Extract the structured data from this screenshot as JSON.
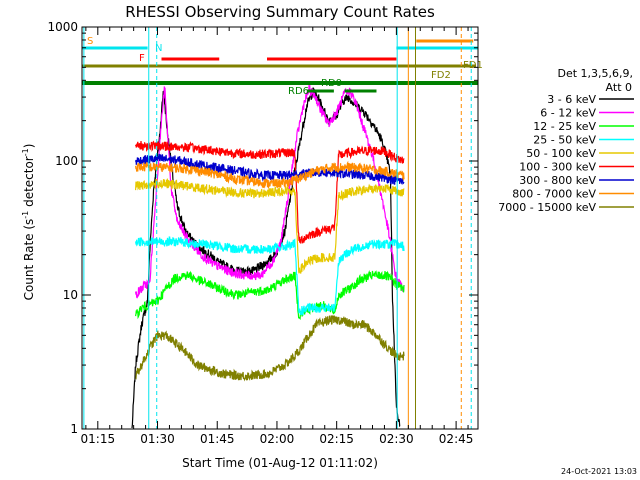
{
  "chart_data": {
    "type": "line",
    "title": "RHESSI Observing Summary Count Rates",
    "xlabel": "Start Time (01-Aug-12 01:11:02)",
    "ylabel": "Count Rate (s⁻¹ detector⁻¹)",
    "ylabel_base": "Count Rate (s",
    "ylabel_sup1": "-1",
    "ylabel_mid": " detector",
    "ylabel_sup2": "-1",
    "ylabel_end": ")",
    "yscale": "log",
    "ylim": [
      1,
      1000
    ],
    "xlim_minutes": [
      71.03,
      170.5
    ],
    "x_ticks": [
      {
        "m": 75,
        "label": "01:15"
      },
      {
        "m": 90,
        "label": "01:30"
      },
      {
        "m": 105,
        "label": "01:45"
      },
      {
        "m": 120,
        "label": "02:00"
      },
      {
        "m": 135,
        "label": "02:15"
      },
      {
        "m": 150,
        "label": "02:30"
      },
      {
        "m": 165,
        "label": "02:45"
      }
    ],
    "y_ticks": [
      {
        "v": 1,
        "label": "1"
      },
      {
        "v": 10,
        "label": "10"
      },
      {
        "v": 100,
        "label": "100"
      },
      {
        "v": 1000,
        "label": "1000"
      }
    ],
    "legend_header": [
      "Det 1,3,5,6,9,",
      "Att 0"
    ],
    "timestamp": "24-Oct-2021 13:03",
    "flags": [
      {
        "label": "S",
        "color": "#ff8c00"
      },
      {
        "label": "N",
        "color": "#00e5ee"
      },
      {
        "label": "F",
        "color": "#ff0000"
      },
      {
        "label": "RD0",
        "color": "#008000"
      },
      {
        "label": "RD6",
        "color": "#008000"
      },
      {
        "label": "FD2",
        "color": "#808000"
      },
      {
        "label": "FD1",
        "color": "#808000"
      }
    ],
    "series": [
      {
        "name": "3 - 6 keV",
        "color": "#000000",
        "points": [
          [
            83.6,
            1.0
          ],
          [
            84.5,
            3
          ],
          [
            86,
            6
          ],
          [
            87.5,
            9
          ],
          [
            88,
            20
          ],
          [
            89,
            60
          ],
          [
            90.5,
            150
          ],
          [
            91.5,
            350
          ],
          [
            92.2,
            200
          ],
          [
            93.5,
            90
          ],
          [
            95,
            45
          ],
          [
            97,
            30
          ],
          [
            99,
            25
          ],
          [
            101,
            22
          ],
          [
            103,
            20
          ],
          [
            106,
            17
          ],
          [
            110,
            15
          ],
          [
            114,
            15
          ],
          [
            118,
            18
          ],
          [
            120,
            21
          ],
          [
            122,
            30
          ],
          [
            124,
            70
          ],
          [
            126,
            150
          ],
          [
            127.5,
            260
          ],
          [
            129,
            330
          ],
          [
            130.5,
            290
          ],
          [
            132,
            230
          ],
          [
            133,
            200
          ],
          [
            135,
            220
          ],
          [
            136.5,
            280
          ],
          [
            138,
            300
          ],
          [
            140,
            260
          ],
          [
            142,
            230
          ],
          [
            144,
            190
          ],
          [
            146,
            150
          ],
          [
            147.5,
            110
          ],
          [
            148.5,
            80
          ],
          [
            149,
            10
          ],
          [
            150,
            1.5
          ],
          [
            151,
            1.0
          ]
        ]
      },
      {
        "name": "6 - 12 keV",
        "color": "#ff00ff",
        "points": [
          [
            84.5,
            10
          ],
          [
            87,
            12
          ],
          [
            88,
            12
          ],
          [
            89.5,
            50
          ],
          [
            91,
            200
          ],
          [
            91.8,
            360
          ],
          [
            92.3,
            200
          ],
          [
            93.5,
            60
          ],
          [
            95,
            35
          ],
          [
            98,
            25
          ],
          [
            101,
            20
          ],
          [
            104,
            17
          ],
          [
            108,
            15
          ],
          [
            112,
            14
          ],
          [
            116,
            14
          ],
          [
            119,
            18
          ],
          [
            121,
            25
          ],
          [
            123,
            60
          ],
          [
            125,
            150
          ],
          [
            126.5,
            250
          ],
          [
            128,
            340
          ],
          [
            129.5,
            310
          ],
          [
            131,
            240
          ],
          [
            133,
            190
          ],
          [
            135,
            230
          ],
          [
            137,
            320
          ],
          [
            138.5,
            330
          ],
          [
            140,
            260
          ],
          [
            142,
            170
          ],
          [
            144,
            110
          ],
          [
            146,
            60
          ],
          [
            148,
            30
          ],
          [
            150,
            13
          ],
          [
            152,
            11
          ]
        ]
      },
      {
        "name": "12 - 25 keV",
        "color": "#00ff00",
        "points": [
          [
            84.5,
            7
          ],
          [
            86,
            8
          ],
          [
            88,
            8.5
          ],
          [
            90,
            9
          ],
          [
            92,
            11
          ],
          [
            94,
            13
          ],
          [
            96,
            14
          ],
          [
            98,
            14
          ],
          [
            100,
            13
          ],
          [
            103,
            12
          ],
          [
            106,
            11
          ],
          [
            110,
            10
          ],
          [
            114,
            10.5
          ],
          [
            118,
            11
          ],
          [
            122,
            13
          ],
          [
            124.5,
            14
          ],
          [
            125.5,
            7
          ],
          [
            127,
            7.5
          ],
          [
            129,
            8
          ],
          [
            131,
            8.5
          ],
          [
            133,
            8
          ],
          [
            134.5,
            7.5
          ],
          [
            135.5,
            10
          ],
          [
            138,
            11
          ],
          [
            141,
            13
          ],
          [
            144,
            14
          ],
          [
            147,
            14
          ],
          [
            149,
            13
          ],
          [
            150,
            12
          ],
          [
            152,
            11
          ]
        ]
      },
      {
        "name": "25 - 50 keV",
        "color": "#00ffff",
        "points": [
          [
            84.5,
            25
          ],
          [
            87,
            25
          ],
          [
            90,
            25
          ],
          [
            93,
            25
          ],
          [
            96,
            25
          ],
          [
            99,
            24
          ],
          [
            102,
            24
          ],
          [
            106,
            23
          ],
          [
            110,
            22
          ],
          [
            114,
            22
          ],
          [
            118,
            22
          ],
          [
            122,
            23
          ],
          [
            124.5,
            24
          ],
          [
            125.5,
            7.5
          ],
          [
            128,
            8
          ],
          [
            131,
            8
          ],
          [
            134.5,
            8
          ],
          [
            135.5,
            18
          ],
          [
            138,
            21
          ],
          [
            141,
            23
          ],
          [
            144,
            24
          ],
          [
            147,
            24
          ],
          [
            150,
            24
          ],
          [
            152,
            23
          ]
        ]
      },
      {
        "name": "50 - 100 keV",
        "color": "#e6c800",
        "points": [
          [
            84.5,
            65
          ],
          [
            87,
            66
          ],
          [
            90,
            68
          ],
          [
            93,
            67
          ],
          [
            96,
            66
          ],
          [
            99,
            64
          ],
          [
            102,
            62
          ],
          [
            106,
            60
          ],
          [
            110,
            58
          ],
          [
            114,
            57
          ],
          [
            118,
            58
          ],
          [
            122,
            60
          ],
          [
            124.5,
            60
          ],
          [
            125.5,
            15
          ],
          [
            128,
            18
          ],
          [
            131,
            19
          ],
          [
            134.5,
            19
          ],
          [
            135.5,
            55
          ],
          [
            138,
            58
          ],
          [
            141,
            60
          ],
          [
            144,
            62
          ],
          [
            147,
            63
          ],
          [
            150,
            60
          ],
          [
            152,
            58
          ]
        ]
      },
      {
        "name": "100 - 300 keV",
        "color": "#ff0000",
        "points": [
          [
            84.5,
            130
          ],
          [
            87,
            130
          ],
          [
            90,
            130
          ],
          [
            93,
            128
          ],
          [
            96,
            127
          ],
          [
            99,
            125
          ],
          [
            102,
            122
          ],
          [
            106,
            118
          ],
          [
            110,
            114
          ],
          [
            114,
            112
          ],
          [
            118,
            113
          ],
          [
            122,
            115
          ],
          [
            124.5,
            116
          ],
          [
            125.5,
            25
          ],
          [
            128,
            28
          ],
          [
            131,
            30
          ],
          [
            134.5,
            32
          ],
          [
            135.5,
            110
          ],
          [
            138,
            115
          ],
          [
            141,
            118
          ],
          [
            144,
            120
          ],
          [
            147,
            118
          ],
          [
            150,
            105
          ],
          [
            152,
            100
          ]
        ]
      },
      {
        "name": "300 - 800 keV",
        "color": "#0000cd",
        "points": [
          [
            84.5,
            100
          ],
          [
            87,
            102
          ],
          [
            90,
            104
          ],
          [
            93,
            103
          ],
          [
            96,
            100
          ],
          [
            99,
            96
          ],
          [
            102,
            92
          ],
          [
            106,
            88
          ],
          [
            110,
            84
          ],
          [
            114,
            80
          ],
          [
            118,
            78
          ],
          [
            122,
            78
          ],
          [
            126,
            80
          ],
          [
            130,
            82
          ],
          [
            134,
            82
          ],
          [
            138,
            80
          ],
          [
            142,
            78
          ],
          [
            146,
            76
          ],
          [
            150,
            72
          ],
          [
            152,
            70
          ]
        ]
      },
      {
        "name": "800 - 7000 keV",
        "color": "#ff8c00",
        "points": [
          [
            84.5,
            90
          ],
          [
            87,
            90
          ],
          [
            90,
            90
          ],
          [
            93,
            89
          ],
          [
            96,
            88
          ],
          [
            99,
            86
          ],
          [
            102,
            83
          ],
          [
            106,
            78
          ],
          [
            110,
            73
          ],
          [
            114,
            70
          ],
          [
            118,
            68
          ],
          [
            122,
            68
          ],
          [
            126,
            75
          ],
          [
            130,
            85
          ],
          [
            134,
            90
          ],
          [
            138,
            90
          ],
          [
            142,
            88
          ],
          [
            146,
            85
          ],
          [
            150,
            80
          ],
          [
            152,
            78
          ]
        ]
      },
      {
        "name": "7000 - 15000 keV",
        "color": "#808000",
        "points": [
          [
            84.5,
            2.5
          ],
          [
            86,
            3
          ],
          [
            88,
            4
          ],
          [
            90,
            5
          ],
          [
            92,
            5
          ],
          [
            94,
            4.5
          ],
          [
            96,
            4
          ],
          [
            98,
            3.5
          ],
          [
            100,
            3
          ],
          [
            103,
            2.8
          ],
          [
            106,
            2.6
          ],
          [
            110,
            2.5
          ],
          [
            114,
            2.5
          ],
          [
            118,
            2.6
          ],
          [
            122,
            3
          ],
          [
            124.5,
            3.5
          ],
          [
            126,
            4
          ],
          [
            128,
            5
          ],
          [
            130,
            6
          ],
          [
            133,
            6.5
          ],
          [
            136,
            6.5
          ],
          [
            139,
            6
          ],
          [
            142,
            6
          ],
          [
            145,
            5
          ],
          [
            148,
            4
          ],
          [
            150,
            3.5
          ],
          [
            152,
            3.5
          ]
        ]
      }
    ]
  }
}
